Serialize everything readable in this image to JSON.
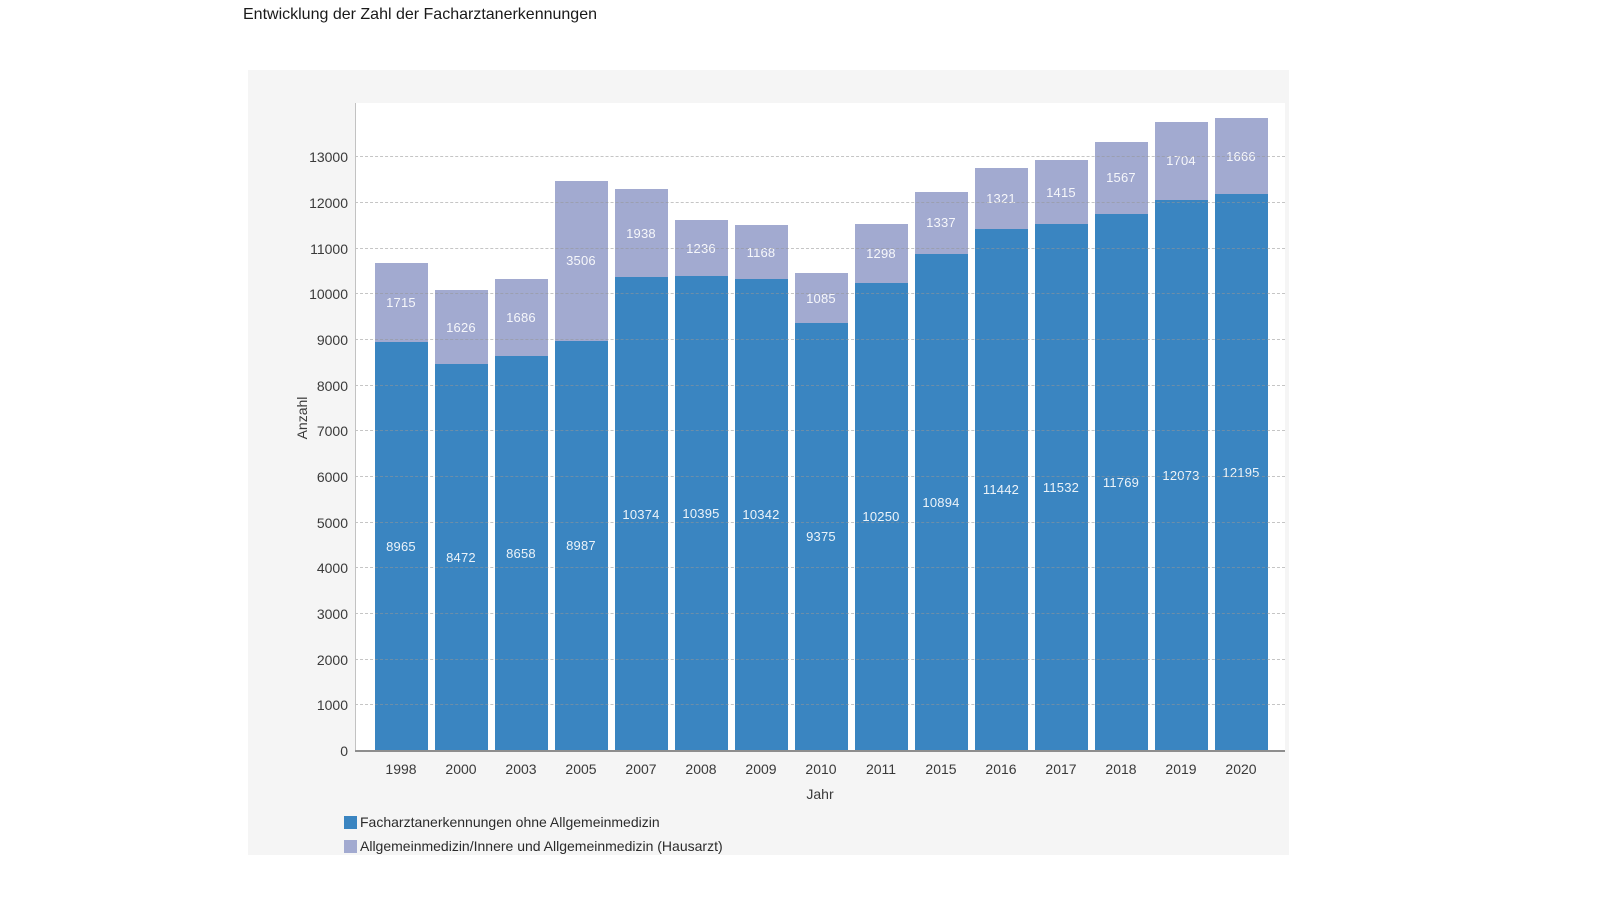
{
  "title": "Entwicklung der Zahl der Facharztanerkennungen",
  "chart_data": {
    "type": "bar",
    "stacked": true,
    "title": "Entwicklung der Zahl der Facharztanerkennungen",
    "xlabel": "Jahr",
    "ylabel": "Anzahl",
    "categories": [
      "1998",
      "2000",
      "2003",
      "2005",
      "2007",
      "2008",
      "2009",
      "2010",
      "2011",
      "2015",
      "2016",
      "2017",
      "2018",
      "2019",
      "2020"
    ],
    "series": [
      {
        "name": "Facharztanerkennungen ohne Allgemeinmedizin",
        "color": "#3a85c1",
        "values": [
          8965,
          8472,
          8658,
          8987,
          10374,
          10395,
          10342,
          9375,
          10250,
          10894,
          11442,
          11532,
          11769,
          12073,
          12195
        ]
      },
      {
        "name": "Allgemeinmedizin/Innere und Allgemeinmedizin (Hausarzt)",
        "color": "#a2aad0",
        "values": [
          1715,
          1626,
          1686,
          3506,
          1938,
          1236,
          1168,
          1085,
          1298,
          1337,
          1321,
          1415,
          1567,
          1704,
          1666
        ]
      }
    ],
    "y_ticks": [
      0,
      1000,
      2000,
      3000,
      4000,
      5000,
      6000,
      7000,
      8000,
      9000,
      10000,
      11000,
      12000,
      13000
    ],
    "ylim": [
      0,
      14190
    ],
    "grid": "horizontal-dashed",
    "legend_position": "bottom-left",
    "bar_labels": true,
    "bar_label_color": "#ffffff",
    "colors": {
      "plot_background": "#ffffff",
      "panel_background": "#f5f5f5",
      "gridline": "#969696",
      "axis_line": "#8e8e8e"
    }
  }
}
